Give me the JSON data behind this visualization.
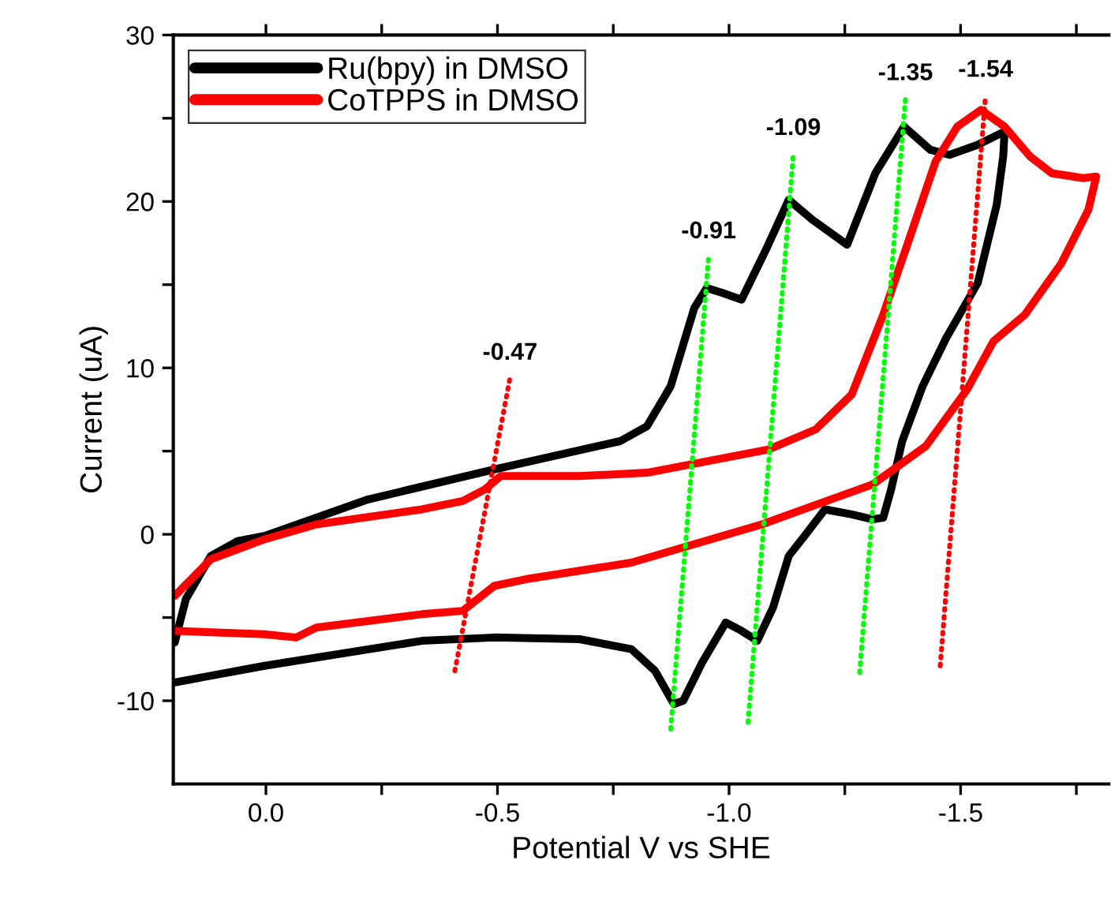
{
  "chart_data": {
    "type": "line",
    "xlabel": "Potential V vs SHE",
    "ylabel": "Current (uA)",
    "xlim": [
      0.2,
      -1.82
    ],
    "ylim": [
      -15,
      30
    ],
    "xticks": [
      {
        "value": 0.0,
        "label": "0.0"
      },
      {
        "value": -0.25,
        "label": null
      },
      {
        "value": -0.5,
        "label": "-0.5"
      },
      {
        "value": -0.75,
        "label": null
      },
      {
        "value": -1.0,
        "label": "-1.0"
      },
      {
        "value": -1.25,
        "label": null
      },
      {
        "value": -1.5,
        "label": "-1.5"
      },
      {
        "value": -1.75,
        "label": null
      }
    ],
    "yticks": [
      -10,
      {
        "value": -5,
        "label": null
      },
      0,
      {
        "value": 5,
        "label": null
      },
      10,
      {
        "value": 15,
        "label": null
      },
      20,
      {
        "value": 25,
        "label": null
      },
      30
    ],
    "grid": false,
    "legend": "top left",
    "series": [
      {
        "name": "Ru(bpy) in DMSO",
        "color": "#000000",
        "x": [
          0.197,
          0.173,
          0.119,
          0.061,
          0.003,
          -0.221,
          -0.493,
          -0.765,
          -0.823,
          -0.874,
          -0.925,
          -0.952,
          -0.986,
          -1.027,
          -1.078,
          -1.129,
          -1.18,
          -1.255,
          -1.316,
          -1.378,
          -1.435,
          -1.476,
          -1.537,
          -1.595,
          -1.592,
          -1.578,
          -1.537,
          -1.469,
          -1.418,
          -1.374,
          -1.35,
          -1.333,
          -1.31,
          -1.265,
          -1.207,
          -1.163,
          -1.129,
          -1.095,
          -1.061,
          -1.027,
          -0.993,
          -0.942,
          -0.901,
          -0.881,
          -0.84,
          -0.789,
          -0.677,
          -0.493,
          -0.337,
          0.003,
          0.197
        ],
        "values": [
          -6.5,
          -3.9,
          -1.3,
          -0.4,
          -0.1,
          2.1,
          3.9,
          5.6,
          6.5,
          8.9,
          13.6,
          14.8,
          14.5,
          14.1,
          17.0,
          20.1,
          18.9,
          17.4,
          21.7,
          24.5,
          23.1,
          22.8,
          23.4,
          24.2,
          22.7,
          19.8,
          15.1,
          11.8,
          8.9,
          5.6,
          2.7,
          1.0,
          0.9,
          1.2,
          1.5,
          -0.1,
          -1.3,
          -4.4,
          -6.4,
          -5.8,
          -5.3,
          -7.7,
          -10.0,
          -10.2,
          -8.2,
          -6.9,
          -6.3,
          -6.2,
          -6.4,
          -7.9,
          -8.9
        ]
      },
      {
        "name": "CoTPPS in DMSO",
        "color": "#ff0000",
        "x": [
          0.197,
          0.119,
          0.003,
          -0.109,
          -0.337,
          -0.425,
          -0.473,
          -0.507,
          -0.677,
          -0.823,
          -1.085,
          -1.187,
          -1.265,
          -1.333,
          -1.391,
          -1.446,
          -1.493,
          -1.544,
          -1.595,
          -1.65,
          -1.697,
          -1.765,
          -1.793,
          -1.776,
          -1.718,
          -1.639,
          -1.571,
          -1.514,
          -1.425,
          -1.31,
          -1.071,
          -0.789,
          -0.561,
          -0.493,
          -0.425,
          -0.337,
          -0.109,
          -0.065,
          0.003,
          0.197
        ],
        "values": [
          -3.7,
          -1.5,
          -0.3,
          0.6,
          1.5,
          2.0,
          2.7,
          3.5,
          3.5,
          3.7,
          5.1,
          6.3,
          8.4,
          13.2,
          17.9,
          22.4,
          24.5,
          25.5,
          24.5,
          22.7,
          21.7,
          21.4,
          21.5,
          19.5,
          16.3,
          13.2,
          11.6,
          8.7,
          5.3,
          3.0,
          0.6,
          -1.7,
          -2.7,
          -3.1,
          -4.6,
          -4.8,
          -5.6,
          -6.2,
          -6.0,
          -5.8
        ]
      },
      {
        "color": "#ff0000",
        "line_style": "dotted",
        "x": [
          -0.408,
          -0.527
        ],
        "values": [
          -8.2,
          9.4
        ]
      },
      {
        "color": "#00ff00",
        "line_style": "dotted",
        "x": [
          -0.874,
          -0.956
        ],
        "values": [
          -11.7,
          16.7
        ]
      },
      {
        "color": "#00ff00",
        "line_style": "dotted",
        "x": [
          -1.041,
          -1.139
        ],
        "values": [
          -11.3,
          22.9
        ]
      },
      {
        "color": "#00ff00",
        "line_style": "dotted",
        "x": [
          -1.282,
          -1.381
        ],
        "values": [
          -8.3,
          26.2
        ]
      },
      {
        "color": "#ff0000",
        "line_style": "dotted",
        "x": [
          -1.456,
          -1.554
        ],
        "values": [
          -7.9,
          26.4
        ]
      }
    ],
    "annotations": [
      {
        "text": "-0.47",
        "x": -0.527,
        "y": 9.4
      },
      {
        "text": "-0.91",
        "x": -0.956,
        "y": 16.7
      },
      {
        "text": "-1.09",
        "x": -1.139,
        "y": 22.9
      },
      {
        "text": "-1.35",
        "x": -1.381,
        "y": 26.2
      },
      {
        "text": "-1.54",
        "x": -1.554,
        "y": 26.4
      }
    ]
  }
}
